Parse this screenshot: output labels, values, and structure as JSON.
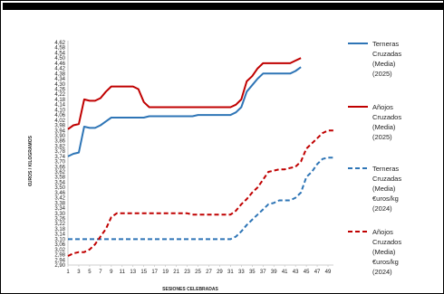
{
  "chart_data": {
    "type": "line",
    "xlabel": "SESIONES CELEBRADAS",
    "ylabel": "€UROS / KILOGRAMOS",
    "ylim": [
      2.9,
      4.62
    ],
    "xlim": [
      1,
      50
    ],
    "x_tick_labels": [
      "1",
      "3",
      "5",
      "7",
      "9",
      "11",
      "13",
      "15",
      "17",
      "19",
      "21",
      "23",
      "25",
      "27",
      "29",
      "31",
      "33",
      "35",
      "37",
      "39",
      "41",
      "43",
      "45",
      "47",
      "49"
    ],
    "y_tick_labels": [
      "4,62",
      "4,58",
      "4,54",
      "4,50",
      "4,46",
      "4,42",
      "4,38",
      "4,34",
      "4,30",
      "4,26",
      "4,22",
      "4,18",
      "4,14",
      "4,10",
      "4,06",
      "4,02",
      "3,98",
      "3,94",
      "3,90",
      "3,86",
      "3,82",
      "3,78",
      "3,74",
      "3,70",
      "3,66",
      "3,62",
      "3,58",
      "3,54",
      "3,50",
      "3,46",
      "3,42",
      "3,38",
      "3,34",
      "3,30",
      "3,26",
      "3,22",
      "3,18",
      "3,14",
      "3,10",
      "3,06",
      "3,02",
      "2,98",
      "2,94",
      "2,90"
    ],
    "grid": false,
    "legend_position": "right",
    "series": [
      {
        "name": "Terneras Cruzadas (Media) (2025)",
        "color": "#2e75b6",
        "style": "solid",
        "x": [
          1,
          2,
          3,
          4,
          5,
          6,
          7,
          8,
          9,
          10,
          11,
          12,
          13,
          14,
          15,
          16,
          17,
          18,
          19,
          20,
          21,
          22,
          23,
          24,
          25,
          26,
          27,
          28,
          29,
          30,
          31,
          32,
          33,
          34,
          35,
          36,
          37,
          38,
          39,
          40,
          41,
          42,
          43,
          44
        ],
        "values": [
          3.74,
          3.76,
          3.77,
          3.97,
          3.96,
          3.96,
          3.98,
          4.01,
          4.04,
          4.04,
          4.04,
          4.04,
          4.04,
          4.04,
          4.04,
          4.05,
          4.05,
          4.05,
          4.05,
          4.05,
          4.05,
          4.05,
          4.05,
          4.05,
          4.06,
          4.06,
          4.06,
          4.06,
          4.06,
          4.06,
          4.06,
          4.08,
          4.12,
          4.24,
          4.29,
          4.34,
          4.38,
          4.38,
          4.38,
          4.38,
          4.38,
          4.38,
          4.4,
          4.43
        ]
      },
      {
        "name": "Añojos Cruzados (Media) (2025)",
        "color": "#c00000",
        "style": "solid",
        "x": [
          1,
          2,
          3,
          4,
          5,
          6,
          7,
          8,
          9,
          10,
          11,
          12,
          13,
          14,
          15,
          16,
          17,
          18,
          19,
          20,
          21,
          22,
          23,
          24,
          25,
          26,
          27,
          28,
          29,
          30,
          31,
          32,
          33,
          34,
          35,
          36,
          37,
          38,
          39,
          40,
          41,
          42,
          43,
          44
        ],
        "values": [
          3.95,
          3.98,
          3.99,
          4.18,
          4.17,
          4.17,
          4.19,
          4.24,
          4.28,
          4.28,
          4.28,
          4.28,
          4.28,
          4.26,
          4.16,
          4.12,
          4.12,
          4.12,
          4.12,
          4.12,
          4.12,
          4.12,
          4.12,
          4.12,
          4.12,
          4.12,
          4.12,
          4.12,
          4.12,
          4.12,
          4.12,
          4.14,
          4.18,
          4.32,
          4.36,
          4.42,
          4.46,
          4.46,
          4.46,
          4.46,
          4.46,
          4.46,
          4.48,
          4.5
        ]
      },
      {
        "name": "Terneras Cruzadas (Media) €uros/kg (2024)",
        "color": "#2e75b6",
        "style": "dashed",
        "x": [
          1,
          2,
          3,
          4,
          5,
          6,
          7,
          8,
          9,
          10,
          11,
          12,
          13,
          14,
          15,
          16,
          17,
          18,
          19,
          20,
          21,
          22,
          23,
          24,
          25,
          26,
          27,
          28,
          29,
          30,
          31,
          32,
          33,
          34,
          35,
          36,
          37,
          38,
          39,
          40,
          41,
          42,
          43,
          44,
          45,
          46,
          47,
          48,
          49,
          50
        ],
        "values": [
          3.1,
          3.1,
          3.1,
          3.1,
          3.1,
          3.1,
          3.1,
          3.1,
          3.1,
          3.1,
          3.1,
          3.1,
          3.1,
          3.1,
          3.1,
          3.1,
          3.1,
          3.1,
          3.1,
          3.1,
          3.1,
          3.1,
          3.1,
          3.1,
          3.1,
          3.1,
          3.1,
          3.1,
          3.1,
          3.1,
          3.1,
          3.12,
          3.16,
          3.21,
          3.25,
          3.29,
          3.33,
          3.37,
          3.38,
          3.4,
          3.4,
          3.4,
          3.42,
          3.46,
          3.58,
          3.62,
          3.68,
          3.72,
          3.73,
          3.73
        ]
      },
      {
        "name": "Añojos Cruzados (Media) €uros/kg (2024)",
        "color": "#c00000",
        "style": "dashed",
        "x": [
          1,
          2,
          3,
          4,
          5,
          6,
          7,
          8,
          9,
          10,
          11,
          12,
          13,
          14,
          15,
          16,
          17,
          18,
          19,
          20,
          21,
          22,
          23,
          24,
          25,
          26,
          27,
          28,
          29,
          30,
          31,
          32,
          33,
          34,
          35,
          36,
          37,
          38,
          39,
          40,
          41,
          42,
          43,
          44,
          45,
          46,
          47,
          48,
          49,
          50
        ],
        "values": [
          2.97,
          2.99,
          3.0,
          3.0,
          3.02,
          3.06,
          3.12,
          3.18,
          3.27,
          3.3,
          3.3,
          3.3,
          3.3,
          3.3,
          3.3,
          3.3,
          3.3,
          3.3,
          3.3,
          3.3,
          3.3,
          3.3,
          3.3,
          3.29,
          3.29,
          3.29,
          3.29,
          3.29,
          3.29,
          3.29,
          3.29,
          3.32,
          3.37,
          3.41,
          3.46,
          3.5,
          3.56,
          3.62,
          3.63,
          3.64,
          3.64,
          3.65,
          3.66,
          3.7,
          3.8,
          3.84,
          3.88,
          3.92,
          3.94,
          3.94
        ]
      }
    ]
  }
}
